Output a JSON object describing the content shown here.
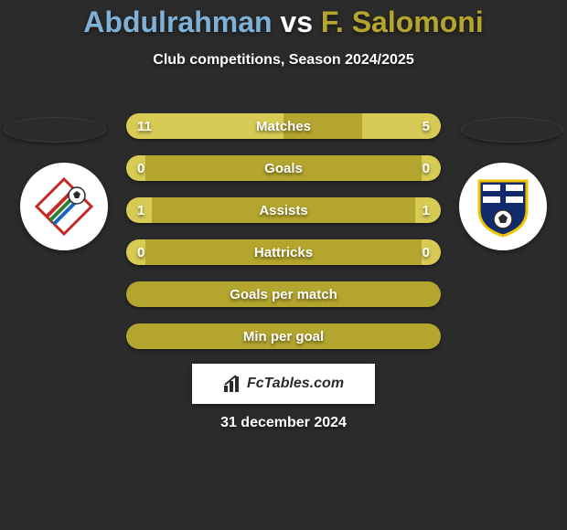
{
  "title": {
    "player1": "Abdulrahman",
    "vs": "vs",
    "player2": "F. Salomoni"
  },
  "title_color_p1": "#7fb1d6",
  "title_color_vs": "#ffffff",
  "title_color_p2": "#b3a52d",
  "subtitle": "Club competitions, Season 2024/2025",
  "bg_color": "#2b2b2b",
  "bar_full_color": "#b3a52d",
  "bar_track_light": "#d7ca55",
  "text_color": "#ffffff",
  "ellipse_left_color": "#2b2b2b",
  "ellipse_right_color": "#2b2b2b",
  "bars": [
    {
      "label": "Matches",
      "left_val": "11",
      "right_val": "5",
      "left_pct": 50,
      "right_pct": 25
    },
    {
      "label": "Goals",
      "left_val": "0",
      "right_val": "0",
      "left_pct": 6,
      "right_pct": 6
    },
    {
      "label": "Assists",
      "left_val": "1",
      "right_val": "1",
      "left_pct": 8,
      "right_pct": 8
    },
    {
      "label": "Hattricks",
      "left_val": "0",
      "right_val": "0",
      "left_pct": 6,
      "right_pct": 6
    },
    {
      "label": "Goals per match",
      "left_val": "",
      "right_val": "",
      "left_pct": 100,
      "right_pct": 0
    },
    {
      "label": "Min per goal",
      "left_val": "",
      "right_val": "",
      "left_pct": 100,
      "right_pct": 0
    }
  ],
  "footer_brand": "FcTables.com",
  "date": "31 december 2024",
  "crest_left": {
    "diamond_border": "#c62828",
    "diamond_fill": "#ffffff",
    "stripe_colors": [
      "#c62828",
      "#2e7d32",
      "#1565c0"
    ],
    "ball_color": "#2b2b2b"
  },
  "crest_right": {
    "shield_fill": "#102a6b",
    "shield_border": "#f2c200",
    "inner_bg": "#ffffff",
    "cross_color": "#102a6b",
    "ball_color": "#2b2b2b"
  }
}
